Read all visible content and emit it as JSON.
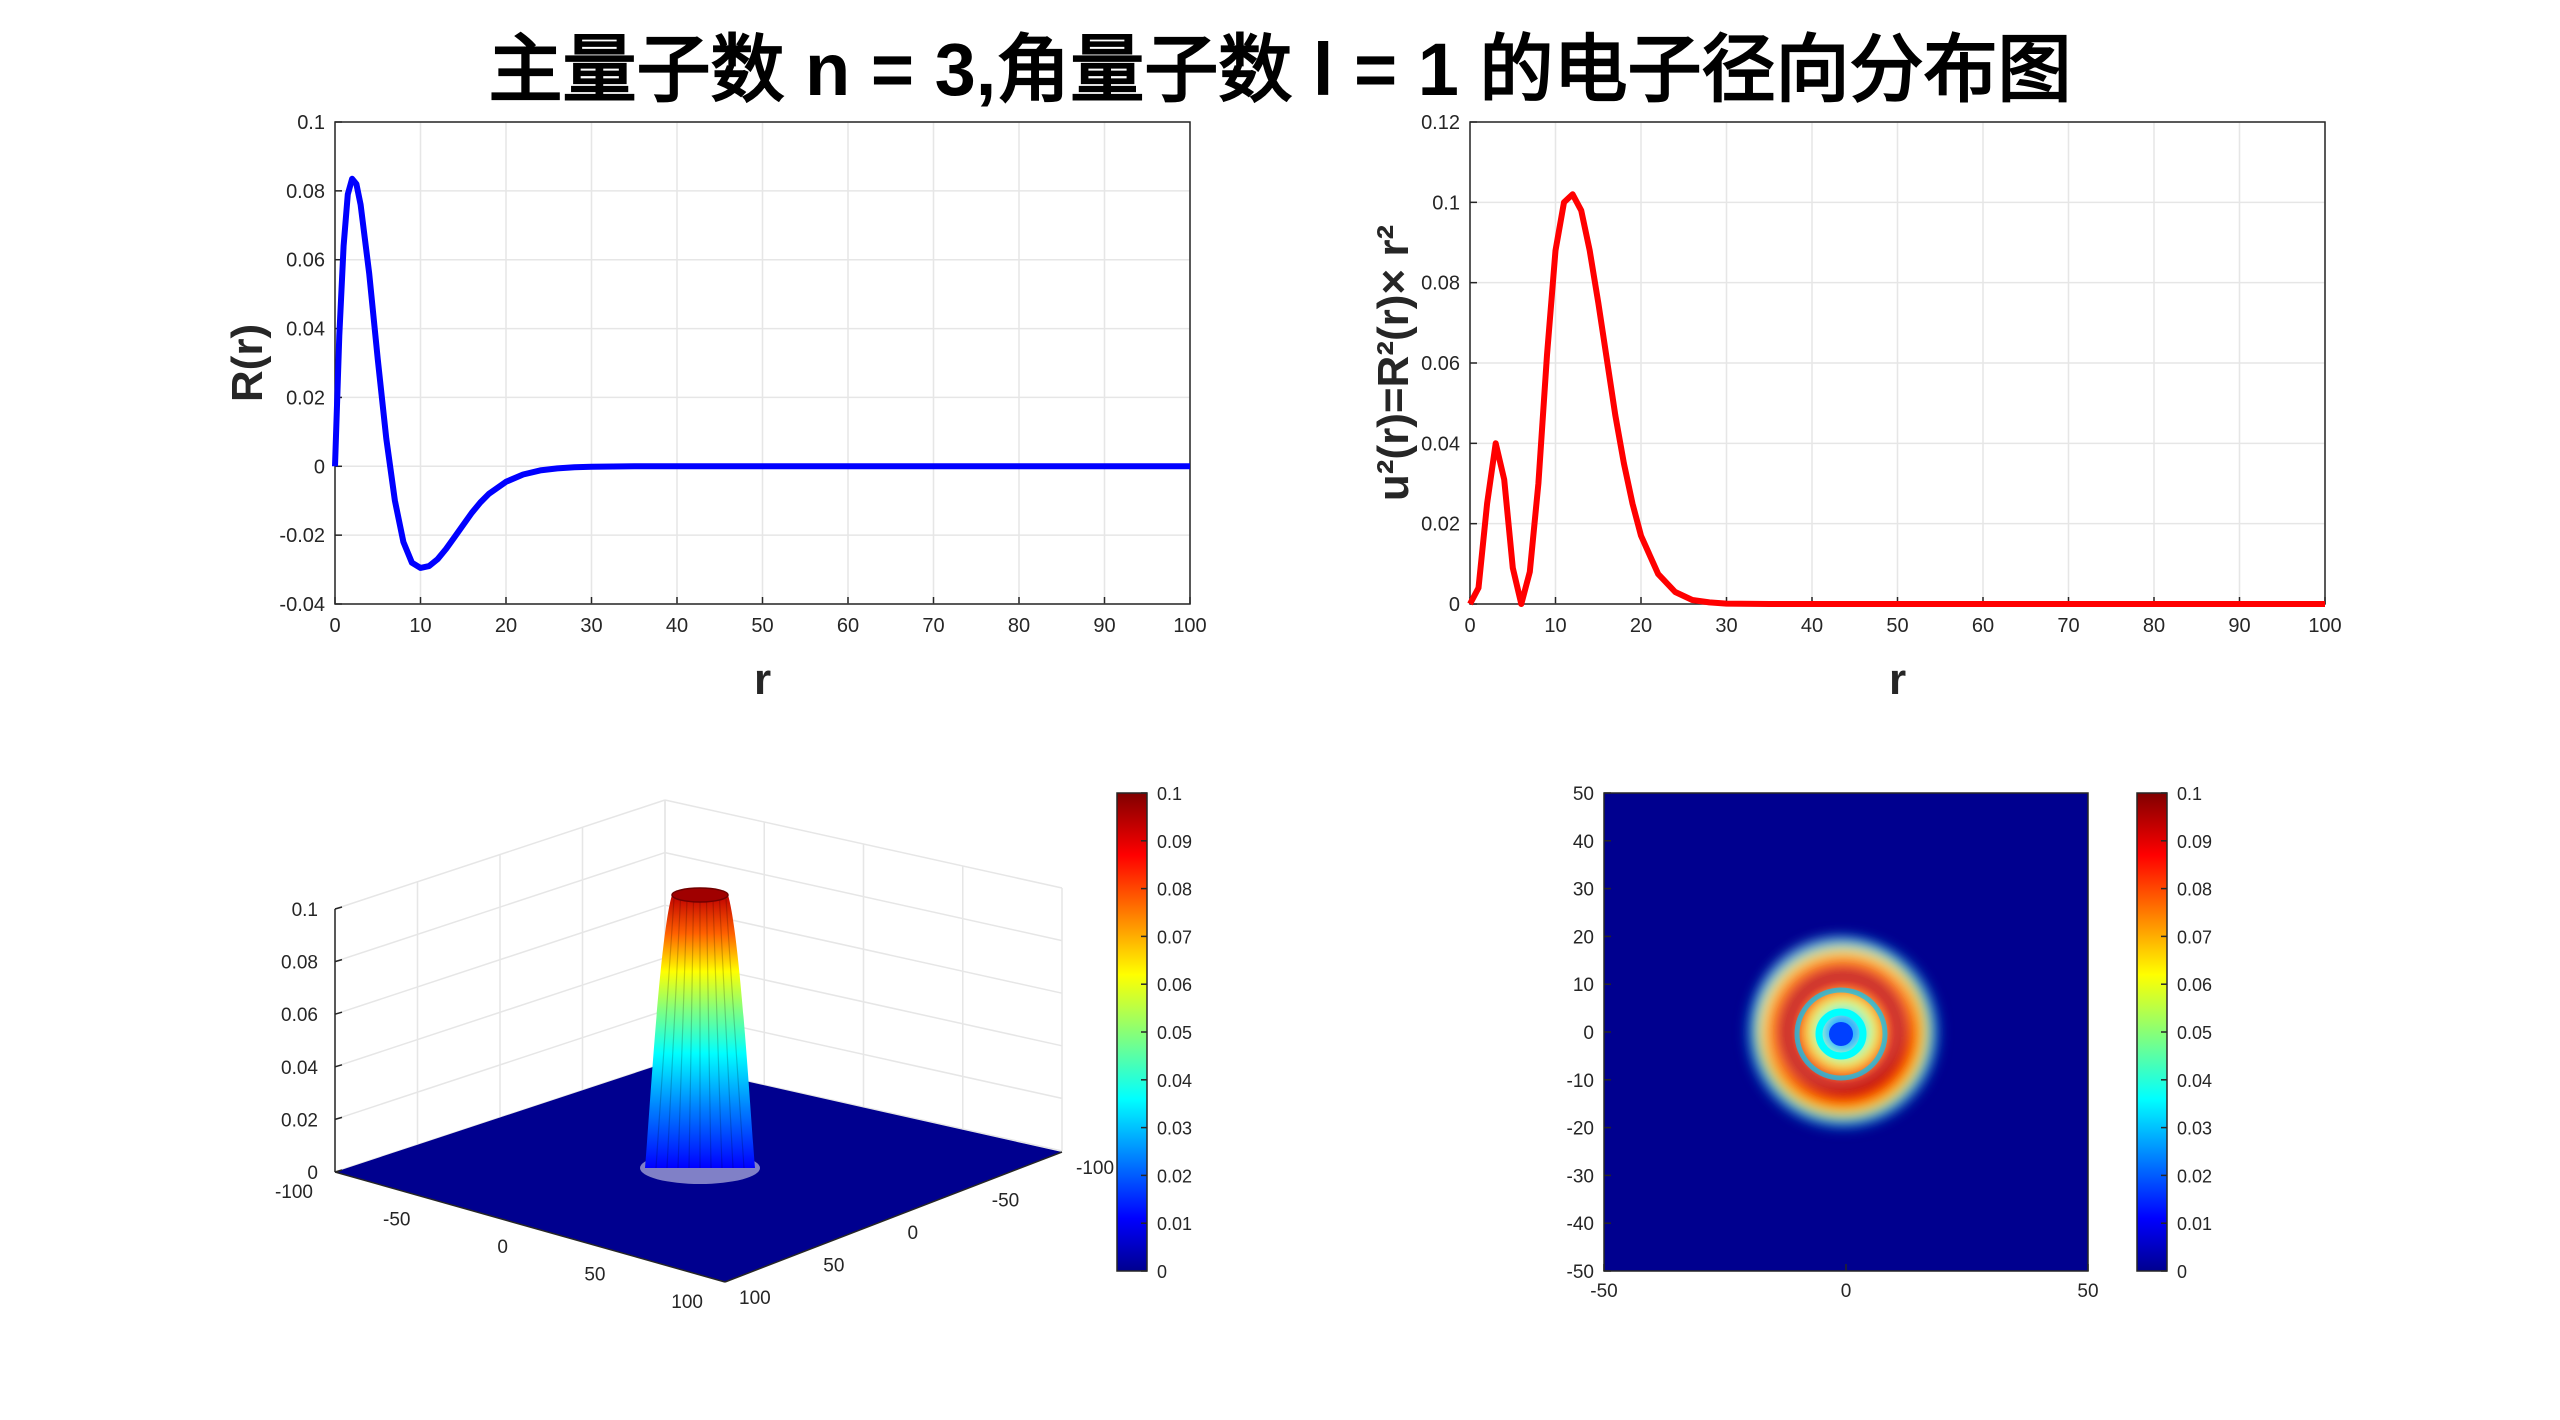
{
  "title": "主量子数 n = 3,角量子数 l = 1 的电子径向分布图",
  "colors": {
    "blue": "#0000ff",
    "red": "#ff0000",
    "grid": "#e6e6e6",
    "axis": "#262626",
    "surface_base": "#00008f"
  },
  "chart_data": [
    {
      "type": "line",
      "ylabel": "R(r)",
      "xlabel": "r",
      "xlim": [
        0,
        100
      ],
      "ylim": [
        -0.04,
        0.1
      ],
      "xticks": [
        "0",
        "10",
        "20",
        "30",
        "40",
        "50",
        "60",
        "70",
        "80",
        "90",
        "100"
      ],
      "yticks": [
        "-0.04",
        "-0.02",
        "0",
        "0.02",
        "0.04",
        "0.06",
        "0.08",
        "0.1"
      ],
      "grid": true,
      "series": [
        {
          "color": "#0000ff",
          "x": [
            0,
            0.5,
            1,
            1.5,
            2,
            2.5,
            3,
            4,
            5,
            6,
            7,
            8,
            9,
            10,
            11,
            12,
            13,
            14,
            15,
            16,
            17,
            18,
            20,
            22,
            24,
            26,
            28,
            30,
            35,
            40,
            50,
            60,
            70,
            80,
            90,
            100
          ],
          "y": [
            0,
            0.038,
            0.064,
            0.079,
            0.0835,
            0.082,
            0.076,
            0.056,
            0.031,
            0.008,
            -0.01,
            -0.022,
            -0.028,
            -0.0295,
            -0.029,
            -0.027,
            -0.024,
            -0.0205,
            -0.017,
            -0.0135,
            -0.0105,
            -0.008,
            -0.0045,
            -0.0024,
            -0.0012,
            -0.0006,
            -0.0003,
            -0.00015,
            0,
            0,
            0,
            0,
            0,
            0,
            0,
            0
          ]
        }
      ]
    },
    {
      "type": "line",
      "ylabel": "u²(r)=R²(r)× r²",
      "xlabel": "r",
      "xlim": [
        0,
        100
      ],
      "ylim": [
        0,
        0.12
      ],
      "xticks": [
        "0",
        "10",
        "20",
        "30",
        "40",
        "50",
        "60",
        "70",
        "80",
        "90",
        "100"
      ],
      "yticks": [
        "0",
        "0.02",
        "0.04",
        "0.06",
        "0.08",
        "0.1",
        "0.12"
      ],
      "grid": true,
      "series": [
        {
          "color": "#ff0000",
          "x": [
            0,
            1,
            2,
            3,
            4,
            5,
            6,
            7,
            8,
            9,
            10,
            11,
            12,
            13,
            14,
            15,
            16,
            17,
            18,
            19,
            20,
            22,
            24,
            26,
            28,
            30,
            35,
            40,
            50,
            60,
            70,
            80,
            90,
            100
          ],
          "y": [
            0,
            0.004,
            0.025,
            0.04,
            0.031,
            0.009,
            0,
            0.008,
            0.03,
            0.062,
            0.088,
            0.1,
            0.102,
            0.098,
            0.088,
            0.075,
            0.061,
            0.047,
            0.035,
            0.025,
            0.017,
            0.0075,
            0.003,
            0.001,
            0.0004,
            0.0001,
            0,
            0,
            0,
            0,
            0,
            0,
            0,
            0
          ]
        }
      ]
    },
    {
      "type": "surface",
      "xlim": [
        -100,
        100
      ],
      "ylim": [
        -100,
        100
      ],
      "zlim": [
        0,
        0.1
      ],
      "xticks": [
        "-100",
        "-50",
        "0",
        "50",
        "100"
      ],
      "yticks": [
        "-100",
        "-50",
        "0",
        "50",
        "100"
      ],
      "zticks": [
        "0",
        "0.02",
        "0.04",
        "0.06",
        "0.08",
        "0.1"
      ],
      "peak_z": 0.1,
      "colorbar_ticks": [
        "0",
        "0.01",
        "0.02",
        "0.03",
        "0.04",
        "0.05",
        "0.06",
        "0.07",
        "0.08",
        "0.09",
        "0.1"
      ]
    },
    {
      "type": "heatmap",
      "xlim": [
        -50,
        50
      ],
      "ylim": [
        -50,
        50
      ],
      "xticks": [
        "-50",
        "0",
        "50"
      ],
      "yticks": [
        "-50",
        "-40",
        "-30",
        "-20",
        "-10",
        "0",
        "10",
        "20",
        "30",
        "40",
        "50"
      ],
      "ring_radii": [
        3,
        7,
        12
      ],
      "ring_values": [
        0.04,
        0.03,
        0.1
      ],
      "colorbar_ticks": [
        "0",
        "0.01",
        "0.02",
        "0.03",
        "0.04",
        "0.05",
        "0.06",
        "0.07",
        "0.08",
        "0.09",
        "0.1"
      ]
    }
  ]
}
